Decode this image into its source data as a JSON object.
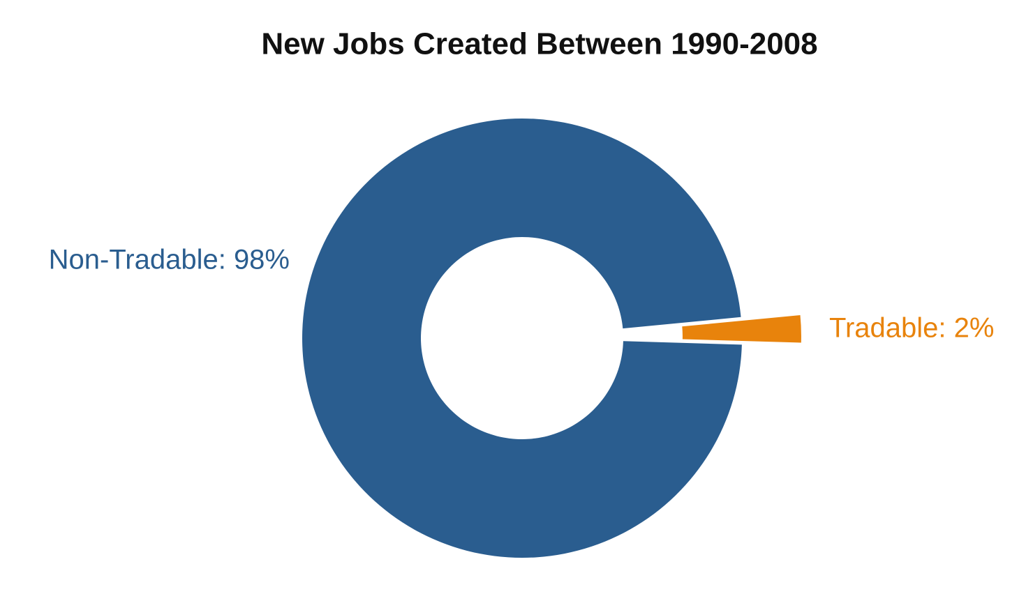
{
  "chart_data": {
    "type": "donut",
    "title": "New Jobs Created Between 1990-2008",
    "values": [
      98,
      2
    ],
    "value_labels": [
      "Non-Tradable: 98%",
      "Tradable: 2%"
    ],
    "colors": [
      "#2a5d8f",
      "#e8830c"
    ]
  }
}
